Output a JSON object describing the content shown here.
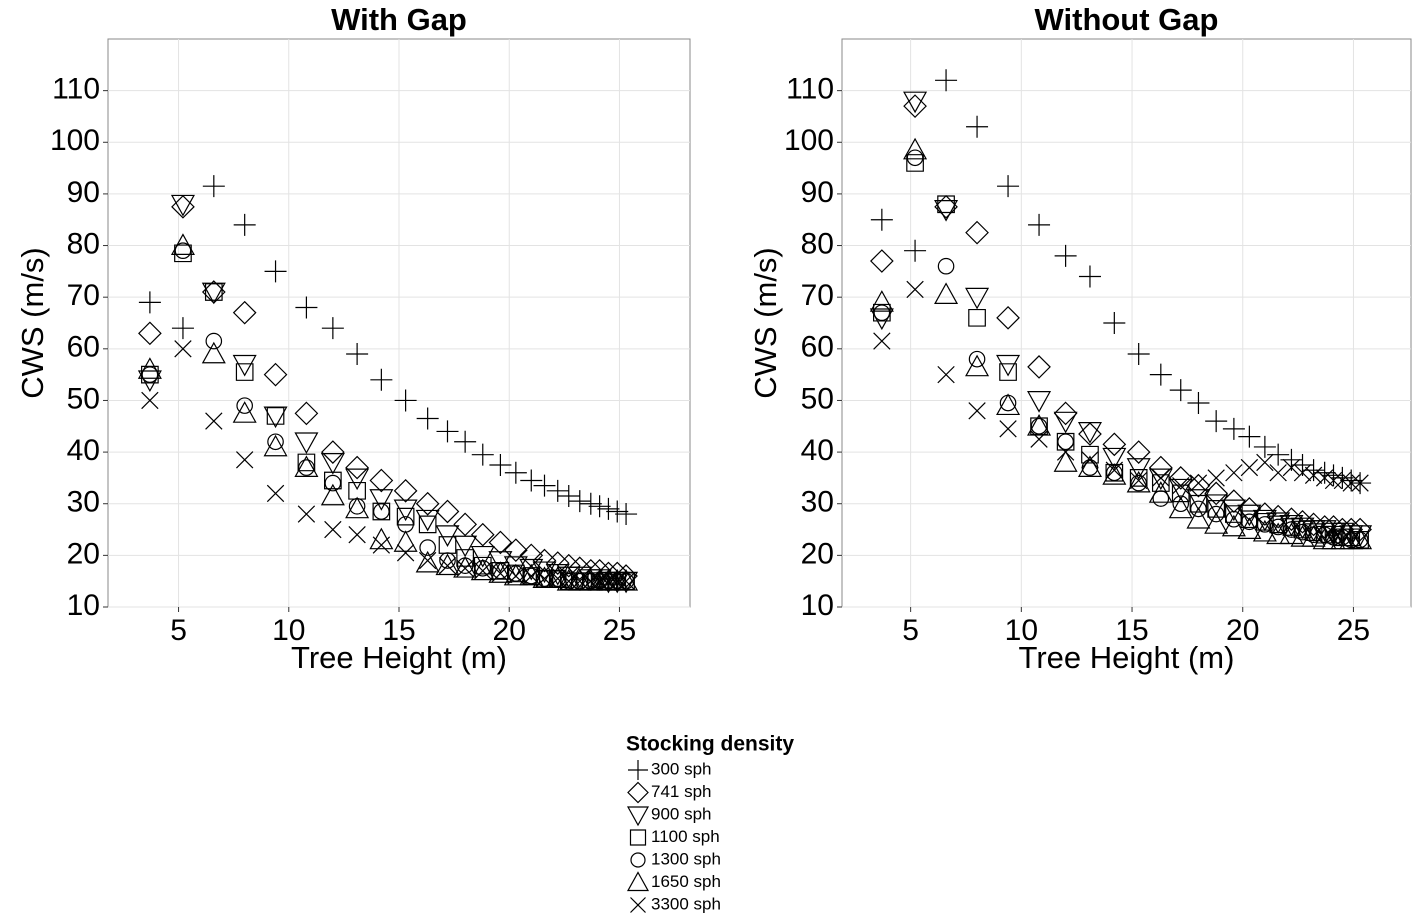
{
  "chart_data": [
    {
      "type": "scatter",
      "title": "With Gap",
      "x_label": "Tree Height (m)",
      "y_label": "CWS (m/s)",
      "x": [
        3.7,
        5.2,
        6.6,
        8.0,
        9.4,
        10.8,
        12.0,
        13.1,
        14.2,
        15.3,
        16.3,
        17.2,
        18.0,
        18.8,
        19.6,
        20.3,
        21.0,
        21.6,
        22.2,
        22.7,
        23.2,
        23.7,
        24.1,
        24.5,
        24.9,
        25.3
      ],
      "xlim": [
        1.8,
        28.2
      ],
      "xticks": [
        5,
        10,
        15,
        20,
        25
      ],
      "ylim": [
        10,
        120
      ],
      "yticks": [
        10,
        20,
        30,
        40,
        50,
        60,
        70,
        80,
        90,
        100,
        110
      ],
      "grid": true,
      "legend_title": "Stocking density",
      "series": [
        {
          "name": "300 sph",
          "shape": "plus",
          "color": "#000000",
          "values": [
            69,
            64,
            91.5,
            84,
            75,
            68,
            64,
            59,
            54,
            50,
            46.5,
            44,
            42,
            39.5,
            37.5,
            36,
            34.5,
            33.5,
            32.5,
            31.5,
            30.5,
            30,
            29.5,
            29,
            28.5,
            28
          ]
        },
        {
          "name": "741 sph",
          "shape": "diamond",
          "color": "#000000",
          "values": [
            63,
            87.5,
            71,
            67,
            55,
            47.5,
            40,
            37,
            34.5,
            32.5,
            30,
            28.5,
            26,
            24,
            22.5,
            21,
            20,
            19,
            18.5,
            18,
            17.5,
            17,
            17,
            16.5,
            16.5,
            16
          ]
        },
        {
          "name": "900 sph",
          "shape": "triangle-down",
          "color": "#000000",
          "values": [
            54,
            88,
            71,
            57,
            47,
            42,
            38,
            35,
            31,
            29,
            27,
            24,
            22,
            20,
            19,
            18,
            17.5,
            17,
            16.5,
            16,
            16,
            15.5,
            15.5,
            15,
            15,
            15
          ]
        },
        {
          "name": "1100 sph",
          "shape": "square",
          "color": "#000000",
          "values": [
            55,
            78.5,
            71,
            55.5,
            47,
            38,
            34.5,
            32.5,
            28.5,
            27.5,
            26,
            22,
            19.5,
            18,
            17,
            16.5,
            16,
            15.5,
            15.5,
            15,
            15,
            15,
            15,
            15,
            15,
            15
          ]
        },
        {
          "name": "1300 sph",
          "shape": "circle",
          "color": "#000000",
          "values": [
            55,
            79,
            61.5,
            49,
            42,
            37,
            34,
            29.5,
            28.5,
            26,
            21.5,
            19,
            18,
            17.5,
            17,
            16.5,
            16,
            15.5,
            15.5,
            15,
            15,
            15,
            15,
            15,
            15,
            15
          ]
        },
        {
          "name": "1650 sph",
          "shape": "triangle-up",
          "color": "#000000",
          "values": [
            56,
            80,
            59,
            47.5,
            41,
            37,
            31.5,
            29,
            23,
            22.5,
            18.5,
            18,
            17.5,
            17,
            16.5,
            16,
            16,
            15.5,
            15.5,
            15,
            15,
            15,
            15,
            15,
            15,
            15
          ]
        },
        {
          "name": "3300 sph",
          "shape": "cross",
          "color": "#000000",
          "values": [
            50,
            60,
            46,
            38.5,
            32,
            28,
            25,
            24,
            22,
            20.5,
            19,
            18,
            17.5,
            17,
            16.5,
            16,
            16,
            15.5,
            15.5,
            15,
            15,
            15,
            15,
            15,
            15,
            15
          ]
        }
      ]
    },
    {
      "type": "scatter",
      "title": "Without Gap",
      "x_label": "Tree Height (m)",
      "y_label": "CWS (m/s)",
      "x": [
        3.7,
        5.2,
        6.6,
        8.0,
        9.4,
        10.8,
        12.0,
        13.1,
        14.2,
        15.3,
        16.3,
        17.2,
        18.0,
        18.8,
        19.6,
        20.3,
        21.0,
        21.6,
        22.2,
        22.7,
        23.2,
        23.7,
        24.1,
        24.5,
        24.9,
        25.3
      ],
      "xlim": [
        1.9,
        27.6
      ],
      "xticks": [
        5,
        10,
        15,
        20,
        25
      ],
      "ylim": [
        10,
        120
      ],
      "yticks": [
        10,
        20,
        30,
        40,
        50,
        60,
        70,
        80,
        90,
        100,
        110
      ],
      "grid": true,
      "series": [
        {
          "name": "300 sph",
          "shape": "plus",
          "color": "#000000",
          "values": [
            85,
            79,
            112,
            103,
            91.5,
            84,
            78,
            74,
            65,
            59,
            55,
            52,
            49.5,
            46,
            44.5,
            43,
            41,
            39.5,
            38.5,
            37.5,
            36.5,
            36,
            35.5,
            35,
            34.5,
            34
          ]
        },
        {
          "name": "741 sph",
          "shape": "diamond",
          "color": "#000000",
          "values": [
            77,
            107,
            87.5,
            82.5,
            66,
            56.5,
            47.5,
            43.5,
            41.5,
            40,
            37,
            35,
            33.5,
            32,
            30.5,
            29,
            28,
            27.5,
            27,
            26.5,
            26,
            25.5,
            25.5,
            25,
            25,
            25
          ]
        },
        {
          "name": "900 sph",
          "shape": "triangle-down",
          "color": "#000000",
          "values": [
            66,
            108,
            87,
            70,
            57,
            50,
            46,
            44,
            39,
            37,
            35,
            33,
            31,
            30,
            29,
            28,
            27,
            26.5,
            26,
            25.5,
            25,
            25,
            24.5,
            24.5,
            24,
            24
          ]
        },
        {
          "name": "1100 sph",
          "shape": "square",
          "color": "#000000",
          "values": [
            67,
            96,
            88,
            66,
            55.5,
            45,
            42,
            39.5,
            36,
            35,
            34,
            32,
            30,
            29,
            28,
            27,
            26.5,
            26,
            25.5,
            25,
            24.5,
            24,
            24,
            23.5,
            23.5,
            23
          ]
        },
        {
          "name": "1300 sph",
          "shape": "circle",
          "color": "#000000",
          "values": [
            67,
            97,
            76,
            58,
            49.5,
            45,
            42,
            37,
            36,
            34,
            31,
            30,
            29,
            28,
            27,
            26.5,
            26,
            25.5,
            25,
            24.5,
            24,
            24,
            23.5,
            23.5,
            23,
            23
          ]
        },
        {
          "name": "1650 sph",
          "shape": "triangle-up",
          "color": "#000000",
          "values": [
            69,
            98.5,
            70.5,
            56.5,
            49,
            45,
            38,
            37,
            35.5,
            34,
            32,
            29,
            27,
            26,
            25.5,
            25,
            24.5,
            24,
            24,
            23.5,
            23.5,
            23,
            23,
            23,
            23,
            23
          ]
        },
        {
          "name": "3300 sph",
          "shape": "cross",
          "color": "#000000",
          "values": [
            61.5,
            71.5,
            55,
            48,
            44.5,
            42.5,
            40,
            38.5,
            36.5,
            34.5,
            35,
            33.5,
            34,
            35,
            36,
            37,
            38,
            36,
            37,
            36,
            35.5,
            35,
            34.5,
            34.5,
            34,
            34
          ]
        }
      ]
    }
  ]
}
